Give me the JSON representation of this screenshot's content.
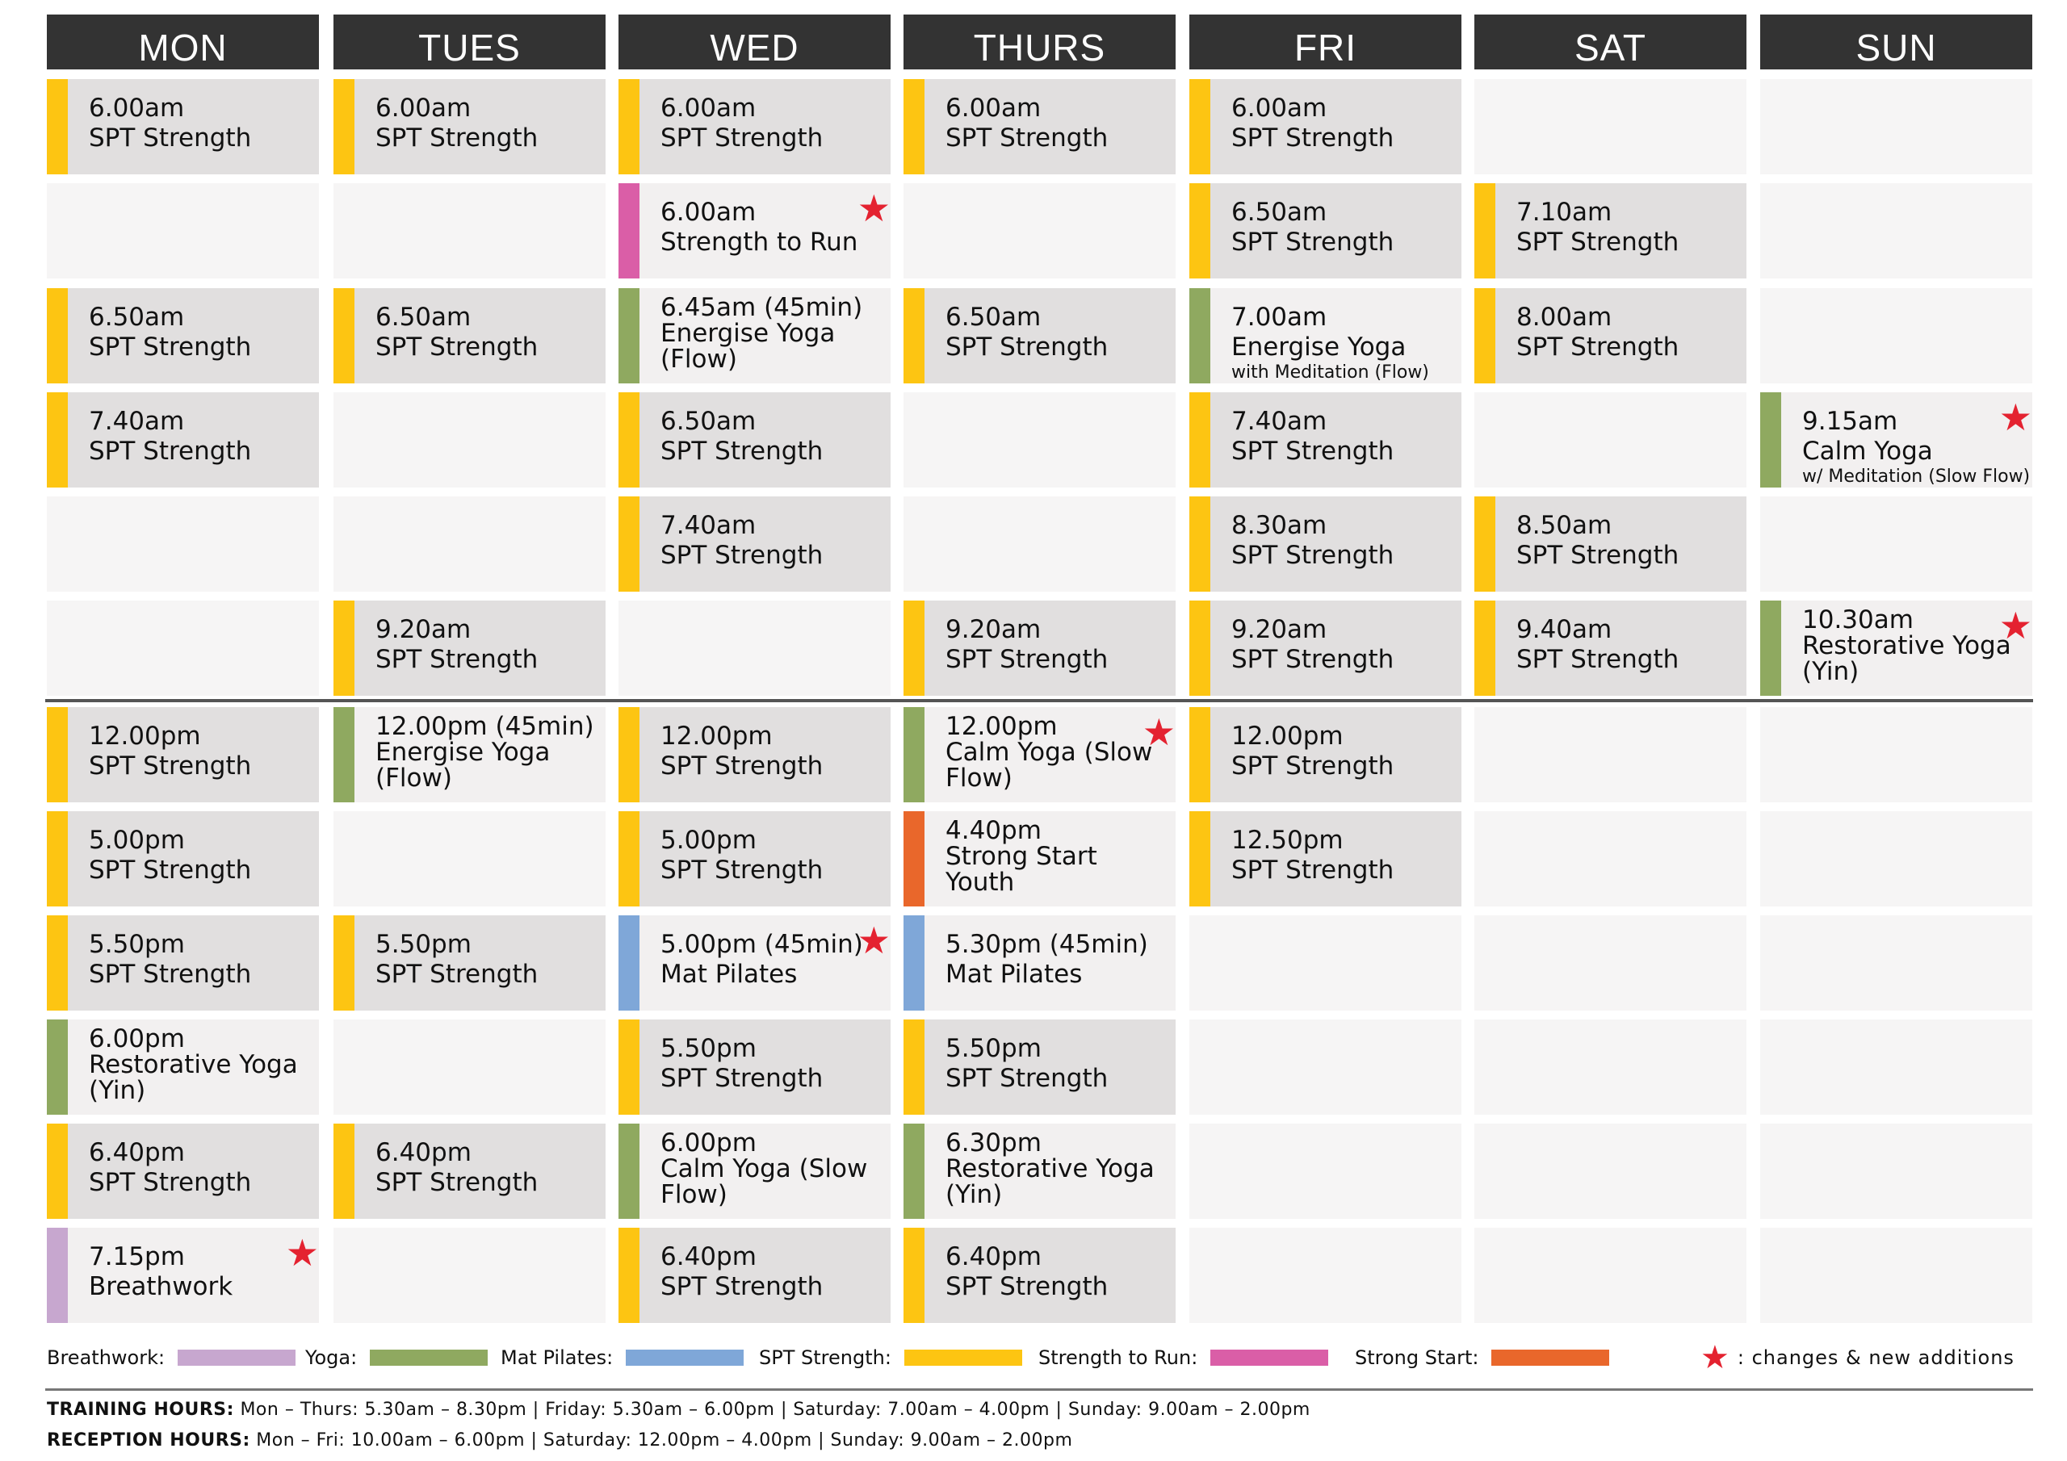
{
  "days": [
    "MON",
    "TUES",
    "WED",
    "THURS",
    "FRI",
    "SAT",
    "SUN"
  ],
  "classes": {
    "mon": [
      {
        "time": "6.00am",
        "name": "SPT Strength",
        "type": "spt"
      },
      {
        "time": "6.50am",
        "name": "SPT Strength",
        "type": "spt"
      },
      {
        "time": "7.40am",
        "name": "SPT Strength",
        "type": "spt"
      },
      {
        "time": "12.00pm",
        "name": "SPT Strength",
        "type": "spt"
      },
      {
        "time": "5.00pm",
        "name": "SPT Strength",
        "type": "spt"
      },
      {
        "time": "5.50pm",
        "name": "SPT Strength",
        "type": "spt"
      },
      {
        "time": "6.00pm",
        "name": "Restorative Yoga (Yin)",
        "type": "yoga"
      },
      {
        "time": "6.40pm",
        "name": "SPT Strength",
        "type": "spt"
      },
      {
        "time": "7.15pm",
        "name": "Breathwork",
        "type": "breathwork",
        "star": true
      }
    ],
    "tue": [
      {
        "time": "6.00am",
        "name": "SPT Strength",
        "type": "spt"
      },
      {
        "time": "6.50am",
        "name": "SPT Strength",
        "type": "spt"
      },
      {
        "time": "9.20am",
        "name": "SPT Strength",
        "type": "spt"
      },
      {
        "time": "12.00pm (45min)",
        "name": "Energise Yoga (Flow)",
        "type": "yoga"
      },
      {
        "time": "5.50pm",
        "name": "SPT Strength",
        "type": "spt"
      },
      {
        "time": "6.40pm",
        "name": "SPT Strength",
        "type": "spt"
      }
    ],
    "wed": [
      {
        "time": "6.00am",
        "name": "SPT Strength",
        "type": "spt"
      },
      {
        "time": "6.00am",
        "name": "Strength to Run",
        "type": "run",
        "star": true
      },
      {
        "time": "6.45am (45min)",
        "name": "Energise Yoga (Flow)",
        "type": "yoga"
      },
      {
        "time": "6.50am",
        "name": "SPT Strength",
        "type": "spt"
      },
      {
        "time": "7.40am",
        "name": "SPT Strength",
        "type": "spt"
      },
      {
        "time": "12.00pm",
        "name": "SPT Strength",
        "type": "spt"
      },
      {
        "time": "5.00pm",
        "name": "SPT Strength",
        "type": "spt"
      },
      {
        "time": "5.00pm (45min)",
        "name": "Mat Pilates",
        "type": "pilates",
        "star": true
      },
      {
        "time": "5.50pm",
        "name": "SPT Strength",
        "type": "spt"
      },
      {
        "time": "6.00pm",
        "name": "Calm Yoga (Slow Flow)",
        "type": "yoga"
      },
      {
        "time": "6.40pm",
        "name": "SPT Strength",
        "type": "spt"
      }
    ],
    "thu": [
      {
        "time": "6.00am",
        "name": "SPT Strength",
        "type": "spt"
      },
      {
        "time": "6.50am",
        "name": "SPT Strength",
        "type": "spt"
      },
      {
        "time": "9.20am",
        "name": "SPT Strength",
        "type": "spt"
      },
      {
        "time": "12.00pm",
        "name": "Calm Yoga (Slow Flow)",
        "type": "yoga",
        "star": true
      },
      {
        "time": "4.40pm",
        "name": "Strong Start Youth",
        "type": "strongstart"
      },
      {
        "time": "5.30pm (45min)",
        "name": "Mat Pilates",
        "type": "pilates"
      },
      {
        "time": "5.50pm",
        "name": "SPT Strength",
        "type": "spt"
      },
      {
        "time": "6.30pm",
        "name": "Restorative Yoga (Yin)",
        "type": "yoga"
      },
      {
        "time": "6.40pm",
        "name": "SPT Strength",
        "type": "spt"
      }
    ],
    "fri": [
      {
        "time": "6.00am",
        "name": "SPT Strength",
        "type": "spt"
      },
      {
        "time": "6.50am",
        "name": "SPT Strength",
        "type": "spt"
      },
      {
        "time": "7.00am",
        "name": "Energise Yoga",
        "sub": "with Meditation (Flow)",
        "type": "yoga"
      },
      {
        "time": "7.40am",
        "name": "SPT Strength",
        "type": "spt"
      },
      {
        "time": "8.30am",
        "name": "SPT Strength",
        "type": "spt"
      },
      {
        "time": "9.20am",
        "name": "SPT Strength",
        "type": "spt"
      },
      {
        "time": "12.00pm",
        "name": "SPT Strength",
        "type": "spt"
      },
      {
        "time": "12.50pm",
        "name": "SPT Strength",
        "type": "spt"
      }
    ],
    "sat": [
      {
        "time": "7.10am",
        "name": "SPT Strength",
        "type": "spt"
      },
      {
        "time": "8.00am",
        "name": "SPT Strength",
        "type": "spt"
      },
      {
        "time": "8.50am",
        "name": "SPT Strength",
        "type": "spt"
      },
      {
        "time": "9.40am",
        "name": "SPT Strength",
        "type": "spt"
      }
    ],
    "sun": [
      {
        "time": "9.15am",
        "name": "Calm Yoga",
        "sub": "w/ Meditation (Slow Flow)",
        "type": "yoga",
        "star": true
      },
      {
        "time": "10.30am",
        "name": "Restorative Yoga (Yin)",
        "type": "yoga",
        "star": true
      }
    ]
  },
  "colors": {
    "spt": "#fdc512",
    "yoga": "#8fa960",
    "pilates": "#7fa7d8",
    "breathwork": "#c7a7cf",
    "run": "#da5ea7",
    "strongstart": "#e9672b",
    "star": "#e42230",
    "header": "#333333",
    "spt_bg": "#e1dfdf",
    "other_bg": "#f2f0f0",
    "empty_bg": "#f6f5f5"
  },
  "legend": [
    {
      "label": "Breathwork:",
      "color": "#c7a7cf"
    },
    {
      "label": "Yoga:",
      "color": "#8fa960"
    },
    {
      "label": "Mat Pilates:",
      "color": "#7fa7d8"
    },
    {
      "label": "SPT Strength:",
      "color": "#fdc512"
    },
    {
      "label": "Strength to Run:",
      "color": "#da5ea7"
    },
    {
      "label": "Strong Start:",
      "color": "#e9672b"
    }
  ],
  "legend_note": ": changes & new additions",
  "hours": {
    "training_label": "TRAINING HOURS:",
    "training_text": " Mon – Thurs: 5.30am – 8.30pm  |  Friday: 5.30am – 6.00pm  |  Saturday: 7.00am – 4.00pm  |  Sunday: 9.00am – 2.00pm",
    "reception_label": "RECEPTION HOURS:",
    "reception_text": " Mon – Fri: 10.00am – 6.00pm  |  Saturday: 12.00pm – 4.00pm  |  Sunday: 9.00am – 2.00pm"
  }
}
